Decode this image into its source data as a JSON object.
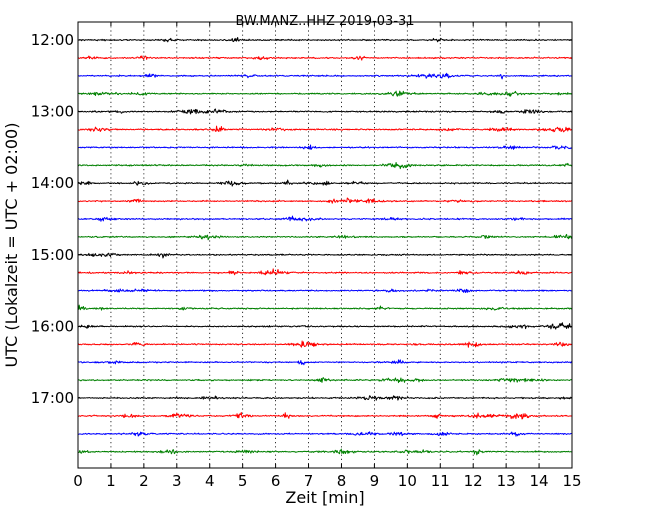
{
  "chart_data": {
    "type": "line",
    "title": "BW.MANZ..HHZ 2019-03-31",
    "xlabel": "Zeit  [min]",
    "ylabel": "UTC (Lokalzeit = UTC + 02:00)",
    "xlim": [
      0,
      15
    ],
    "x_ticks": [
      "0",
      "1",
      "2",
      "3",
      "4",
      "5",
      "6",
      "7",
      "8",
      "9",
      "10",
      "11",
      "12",
      "13",
      "14",
      "15"
    ],
    "y_ticks": [
      "12:00",
      "13:00",
      "14:00",
      "15:00",
      "16:00",
      "17:00"
    ],
    "grid": "vertical dotted",
    "colors": [
      "#000000",
      "#ff0000",
      "#0000ff",
      "#008000"
    ],
    "traces": [
      {
        "start": "12:00",
        "color": "#000000"
      },
      {
        "start": "12:15",
        "color": "#ff0000"
      },
      {
        "start": "12:30",
        "color": "#0000ff"
      },
      {
        "start": "12:45",
        "color": "#008000"
      },
      {
        "start": "13:00",
        "color": "#000000"
      },
      {
        "start": "13:15",
        "color": "#ff0000"
      },
      {
        "start": "13:30",
        "color": "#0000ff"
      },
      {
        "start": "13:45",
        "color": "#008000"
      },
      {
        "start": "14:00",
        "color": "#000000"
      },
      {
        "start": "14:15",
        "color": "#ff0000"
      },
      {
        "start": "14:30",
        "color": "#0000ff"
      },
      {
        "start": "14:45",
        "color": "#008000"
      },
      {
        "start": "15:00",
        "color": "#000000"
      },
      {
        "start": "15:15",
        "color": "#ff0000"
      },
      {
        "start": "15:30",
        "color": "#0000ff"
      },
      {
        "start": "15:45",
        "color": "#008000"
      },
      {
        "start": "16:00",
        "color": "#000000"
      },
      {
        "start": "16:15",
        "color": "#ff0000"
      },
      {
        "start": "16:30",
        "color": "#0000ff"
      },
      {
        "start": "16:45",
        "color": "#008000"
      },
      {
        "start": "17:00",
        "color": "#000000"
      },
      {
        "start": "17:15",
        "color": "#ff0000"
      },
      {
        "start": "17:30",
        "color": "#0000ff"
      },
      {
        "start": "17:45",
        "color": "#008000"
      }
    ]
  }
}
